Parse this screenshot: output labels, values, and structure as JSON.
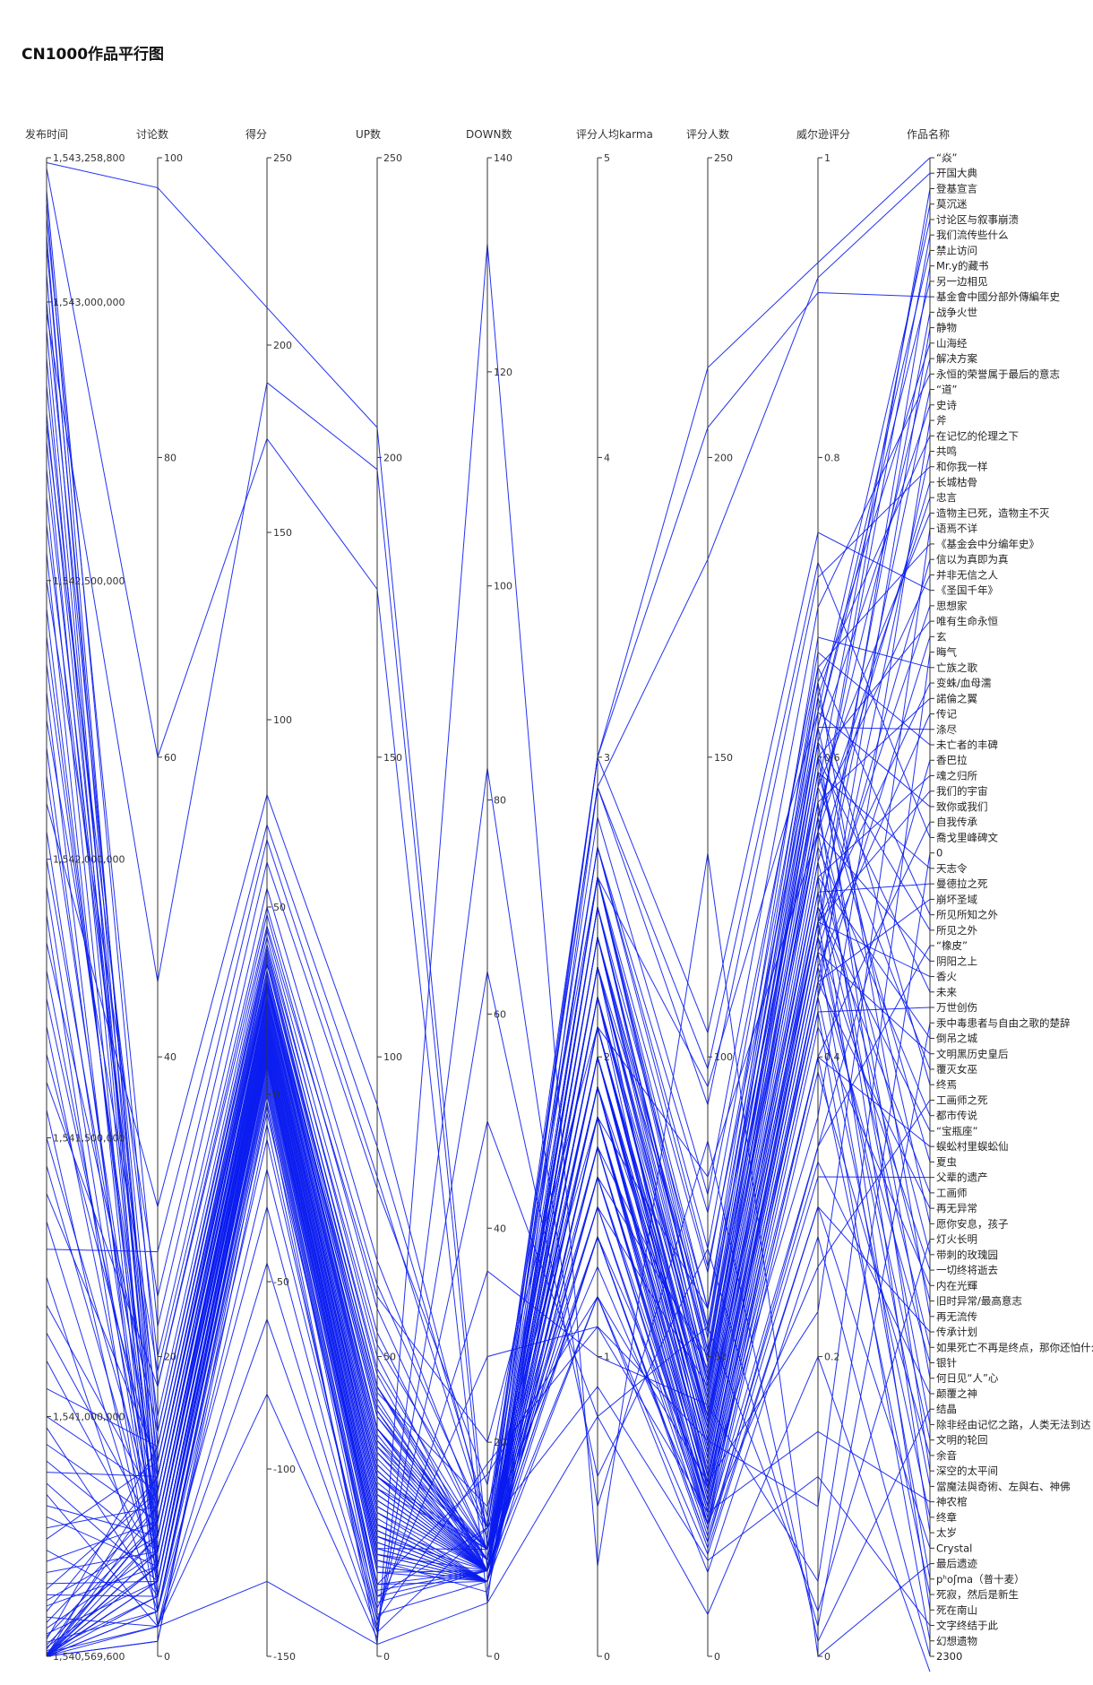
{
  "title": "CN1000作品平行图",
  "chart_data": {
    "type": "parallel-coordinates",
    "title": "CN1000作品平行图",
    "line_color": "#0a1cf0",
    "axes": [
      {
        "key": "time",
        "label": "发布时间",
        "min": 1540569600,
        "max": 1543258800,
        "ticks": [
          1540569600,
          1541000000,
          1541500000,
          1542000000,
          1542500000,
          1543000000,
          1543258800
        ],
        "tick_labels": [
          "1,540,569,600",
          "1,541,000,000",
          "1,541,500,000",
          "1,542,000,000",
          "1,542,500,000",
          "1,543,000,000",
          "1,543,258,800"
        ]
      },
      {
        "key": "comments",
        "label": "讨论数",
        "min": 0,
        "max": 100,
        "ticks": [
          0,
          20,
          40,
          60,
          80,
          100
        ],
        "tick_labels": [
          "0",
          "20",
          "40",
          "60",
          "80",
          "100"
        ]
      },
      {
        "key": "score",
        "label": "得分",
        "min": -150,
        "max": 250,
        "ticks": [
          -150,
          -100,
          -50,
          0,
          50,
          100,
          150,
          200,
          250
        ],
        "tick_labels": [
          "-150",
          "-100",
          "-50",
          "0",
          "50",
          "100",
          "150",
          "200",
          "250"
        ]
      },
      {
        "key": "up",
        "label": "UP数",
        "min": 0,
        "max": 250,
        "ticks": [
          0,
          50,
          100,
          150,
          200,
          250
        ],
        "tick_labels": [
          "0",
          "50",
          "100",
          "150",
          "200",
          "250"
        ]
      },
      {
        "key": "down",
        "label": "DOWN数",
        "min": 0,
        "max": 140,
        "ticks": [
          0,
          20,
          40,
          60,
          80,
          100,
          120,
          140
        ],
        "tick_labels": [
          "0",
          "20",
          "40",
          "60",
          "80",
          "100",
          "120",
          "140"
        ]
      },
      {
        "key": "karma",
        "label": "评分人均karma",
        "min": 0,
        "max": 5,
        "ticks": [
          0,
          1,
          2,
          3,
          4,
          5
        ],
        "tick_labels": [
          "0",
          "1",
          "2",
          "3",
          "4",
          "5"
        ]
      },
      {
        "key": "raters",
        "label": "评分人数",
        "min": 0,
        "max": 250,
        "ticks": [
          0,
          50,
          100,
          150,
          200,
          250
        ],
        "tick_labels": [
          "0",
          "50",
          "100",
          "150",
          "200",
          "250"
        ]
      },
      {
        "key": "wilson",
        "label": "威尔逊评分",
        "min": 0,
        "max": 1,
        "ticks": [
          0,
          0.2,
          0.4,
          0.6,
          0.8,
          1
        ],
        "tick_labels": [
          "0",
          "0.2",
          "0.4",
          "0.6",
          "0.8",
          "1"
        ]
      },
      {
        "key": "name",
        "label": "作品名称",
        "categorical": true
      }
    ],
    "categories": [
      "“焱”",
      "开国大典",
      "登基宣言",
      "莫沉迷",
      "讨论区与叙事崩溃",
      "我们流传些什么",
      "禁止访问",
      "Mr.y的藏书",
      "另一边相见",
      "基金會中國分部外傳編年史",
      "战争火世",
      "静物",
      "山海经",
      "解决方案",
      "永恒的荣誉属于最后的意志",
      "“道”",
      "史诗",
      "斧",
      " 在记忆的伦理之下",
      "共鸣",
      "和你我一样",
      "长城枯骨",
      "忠言",
      "造物主已死，造物主不灭",
      "语焉不详",
      "《基金会中分编年史》",
      "信以为真即为真",
      "并非无信之人",
      "《圣国千年》",
      "思想家",
      "唯有生命永恒",
      "玄",
      "晦气",
      "亡族之歌",
      "变蛛/血母濡",
      "諾倫之翼",
      "传记",
      "涤尽",
      "未亡者的丰碑",
      "香巴拉",
      "魂之归所",
      "我们的宇宙",
      "致你或我们",
      "自我传承",
      "喬戈里峰碑文",
      "0",
      "天志令",
      "曼德拉之死",
      "崩坏圣域",
      "所见所知之外",
      "所见之外",
      "“橡皮”",
      "阴阳之上",
      "香火",
      "未来",
      "万世创伤",
      "汞中毒患者与自由之歌的楚辞",
      "倒吊之城",
      "文明黑历史皇后",
      "覆灭女巫",
      "终焉",
      "工画师之死",
      "都市传说",
      "“宝瓶座”",
      "蜈蚣村里蜈蚣仙",
      "夏虫",
      "父辈的遗产",
      "工画师",
      "再无异常",
      "愿你安息，孩子",
      "灯火长明",
      "带刺的玫瑰园",
      "一切终将逝去",
      "内在光輝",
      "旧时异常/最高意志",
      "再无流传",
      "传承计划",
      "如果死亡不再是终点，那你还怕什么",
      "银针",
      "何日见“人”心",
      "颠覆之神",
      "结晶",
      "除非经由记忆之路，人类无法到达",
      "文明的轮回",
      "余音",
      "深空的太平间",
      "當魔法與奇術、左與右、神佛",
      "神农棺",
      "终章",
      "太岁",
      "Crystal",
      "最后遗迹",
      "pʰoʃma（普十麦）",
      "死寂，然后是新生",
      "死在南山",
      "文字终结于此",
      "幻想遗物",
      "2300"
    ],
    "records": [
      [
        1543250000,
        98,
        210,
        205,
        10,
        3.0,
        215,
        0.93,
        0
      ],
      [
        1543240000,
        60,
        175,
        178,
        5,
        2.9,
        183,
        0.92,
        1
      ],
      [
        1543200000,
        18,
        45,
        60,
        20,
        2.1,
        80,
        0.55,
        2
      ],
      [
        1543180000,
        10,
        30,
        44,
        14,
        1.8,
        58,
        0.58,
        3
      ],
      [
        1543150000,
        22,
        62,
        78,
        16,
        2.6,
        95,
        0.63,
        4
      ],
      [
        1543120000,
        8,
        25,
        35,
        10,
        1.5,
        45,
        0.55,
        5
      ],
      [
        1543100000,
        12,
        35,
        45,
        10,
        2.3,
        55,
        0.62,
        6
      ],
      [
        1543050000,
        5,
        15,
        22,
        7,
        2.0,
        30,
        0.48,
        7
      ],
      [
        1543000000,
        15,
        40,
        52,
        12,
        2.7,
        65,
        0.62,
        8
      ],
      [
        1542980000,
        45,
        190,
        198,
        8,
        3.0,
        205,
        0.91,
        9
      ],
      [
        1542950000,
        9,
        20,
        30,
        10,
        1.9,
        40,
        0.5,
        10
      ],
      [
        1542900000,
        6,
        12,
        20,
        8,
        2.2,
        28,
        0.44,
        11
      ],
      [
        1542850000,
        14,
        38,
        48,
        10,
        2.5,
        58,
        0.64,
        12
      ],
      [
        1542800000,
        11,
        28,
        38,
        10,
        1.7,
        48,
        0.56,
        13
      ],
      [
        1542780000,
        20,
        55,
        66,
        11,
        2.8,
        77,
        0.7,
        14
      ],
      [
        1542750000,
        7,
        18,
        26,
        8,
        2.1,
        34,
        0.49,
        15
      ],
      [
        1542700000,
        13,
        33,
        42,
        9,
        2.4,
        51,
        0.61,
        16
      ],
      [
        1542650000,
        5,
        8,
        18,
        10,
        1.4,
        28,
        0.36,
        17
      ],
      [
        1542600000,
        16,
        44,
        54,
        10,
        2.6,
        64,
        0.65,
        18
      ],
      [
        1542550000,
        4,
        10,
        16,
        6,
        1.8,
        22,
        0.45,
        19
      ],
      [
        1542500000,
        24,
        68,
        80,
        12,
        2.9,
        92,
        0.72,
        20
      ],
      [
        1542450000,
        8,
        22,
        30,
        8,
        2.0,
        38,
        0.53,
        21
      ],
      [
        1542400000,
        10,
        26,
        36,
        10,
        2.2,
        46,
        0.55,
        22
      ],
      [
        1542350000,
        12,
        30,
        40,
        10,
        1.6,
        50,
        0.58,
        23
      ],
      [
        1542300000,
        3,
        -5,
        12,
        17,
        1.2,
        29,
        0.23,
        24
      ],
      [
        1542250000,
        19,
        50,
        62,
        12,
        2.7,
        74,
        0.66,
        25
      ],
      [
        1542200000,
        6,
        14,
        22,
        8,
        2.3,
        30,
        0.47,
        26
      ],
      [
        1542150000,
        9,
        24,
        32,
        8,
        2.1,
        40,
        0.56,
        27
      ],
      [
        1542100000,
        30,
        80,
        92,
        12,
        3.0,
        104,
        0.75,
        28
      ],
      [
        1542050000,
        7,
        16,
        24,
        8,
        1.9,
        32,
        0.48,
        29
      ],
      [
        1542000000,
        11,
        29,
        38,
        9,
        2.4,
        47,
        0.6,
        30
      ],
      [
        1541950000,
        5,
        11,
        18,
        7,
        1.7,
        25,
        0.44,
        31
      ],
      [
        1541900000,
        2,
        -20,
        8,
        28,
        1.1,
        36,
        0.1,
        32
      ],
      [
        1541850000,
        15,
        42,
        50,
        8,
        2.6,
        58,
        0.68,
        33
      ],
      [
        1541800000,
        8,
        18,
        28,
        10,
        2.0,
        38,
        0.49,
        34
      ],
      [
        1541750000,
        10,
        25,
        34,
        9,
        2.2,
        43,
        0.57,
        35
      ],
      [
        1541700000,
        6,
        13,
        20,
        7,
        1.8,
        27,
        0.46,
        36
      ],
      [
        1541650000,
        12,
        32,
        41,
        9,
        2.5,
        50,
        0.62,
        37
      ],
      [
        1541600000,
        18,
        48,
        58,
        10,
        2.7,
        68,
        0.67,
        38
      ],
      [
        1541550000,
        4,
        6,
        14,
        8,
        1.5,
        22,
        0.34,
        39
      ],
      [
        1541500000,
        9,
        21,
        30,
        9,
        2.1,
        39,
        0.52,
        40
      ],
      [
        1541450000,
        7,
        17,
        25,
        8,
        2.0,
        33,
        0.49,
        41
      ],
      [
        1541400000,
        13,
        36,
        45,
        9,
        2.4,
        54,
        0.63,
        42
      ],
      [
        1541350000,
        5,
        9,
        17,
        8,
        1.6,
        25,
        0.4,
        43
      ],
      [
        1541300000,
        27,
        72,
        85,
        13,
        2.9,
        98,
        0.73,
        44
      ],
      [
        1541250000,
        3,
        -30,
        6,
        36,
        1.0,
        42,
        0.05,
        45
      ],
      [
        1541200000,
        10,
        27,
        35,
        8,
        2.3,
        43,
        0.59,
        46
      ],
      [
        1541150000,
        8,
        19,
        27,
        8,
        2.0,
        35,
        0.51,
        47
      ],
      [
        1541100000,
        6,
        12,
        19,
        7,
        1.9,
        26,
        0.45,
        48
      ],
      [
        1541050000,
        14,
        39,
        47,
        8,
        2.6,
        55,
        0.66,
        49
      ],
      [
        1541000000,
        11,
        30,
        38,
        8,
        2.3,
        46,
        0.61,
        50
      ],
      [
        1540980000,
        4,
        5,
        12,
        7,
        1.4,
        19,
        0.34,
        51
      ],
      [
        1540950000,
        9,
        23,
        31,
        8,
        2.2,
        39,
        0.55,
        52
      ],
      [
        1540920000,
        7,
        15,
        22,
        7,
        1.8,
        29,
        0.49,
        53
      ],
      [
        1540900000,
        12,
        31,
        40,
        9,
        2.5,
        49,
        0.6,
        54
      ],
      [
        1540880000,
        5,
        10,
        17,
        7,
        1.7,
        24,
        0.43,
        55
      ],
      [
        1540860000,
        2,
        -60,
        4,
        64,
        0.6,
        68,
        0.02,
        56
      ],
      [
        1540840000,
        8,
        20,
        28,
        8,
        2.1,
        36,
        0.52,
        57
      ],
      [
        1540820000,
        6,
        14,
        21,
        7,
        1.9,
        28,
        0.47,
        58
      ],
      [
        1540800000,
        10,
        26,
        34,
        8,
        2.4,
        42,
        0.58,
        59
      ],
      [
        1540780000,
        13,
        35,
        43,
        8,
        2.6,
        51,
        0.64,
        60
      ],
      [
        1540760000,
        3,
        -2,
        10,
        12,
        1.3,
        22,
        0.26,
        61
      ],
      [
        1540740000,
        9,
        22,
        30,
        8,
        2.2,
        38,
        0.54,
        62
      ],
      [
        1540720000,
        7,
        17,
        24,
        7,
        2.0,
        31,
        0.5,
        63
      ],
      [
        1540700000,
        5,
        8,
        15,
        7,
        1.6,
        22,
        0.4,
        64
      ],
      [
        1540690000,
        11,
        28,
        36,
        8,
        2.3,
        44,
        0.59,
        65
      ],
      [
        1540680000,
        4,
        3,
        11,
        8,
        1.4,
        19,
        0.32,
        66
      ],
      [
        1540670000,
        8,
        18,
        26,
        8,
        2.1,
        34,
        0.5,
        67
      ],
      [
        1540660000,
        6,
        12,
        19,
        7,
        1.9,
        26,
        0.45,
        68
      ],
      [
        1540650000,
        12,
        33,
        41,
        8,
        2.5,
        49,
        0.62,
        69
      ],
      [
        1540640000,
        2,
        -45,
        5,
        50,
        0.8,
        55,
        0.03,
        70
      ],
      [
        1540630000,
        10,
        24,
        32,
        8,
        2.2,
        40,
        0.56,
        71
      ],
      [
        1540620000,
        7,
        16,
        23,
        7,
        1.9,
        30,
        0.48,
        72
      ],
      [
        1540610000,
        5,
        9,
        16,
        7,
        1.7,
        23,
        0.42,
        73
      ],
      [
        1540605000,
        9,
        21,
        29,
        8,
        2.1,
        37,
        0.53,
        74
      ],
      [
        1540600000,
        14,
        37,
        45,
        8,
        2.6,
        53,
        0.65,
        75
      ],
      [
        1540595000,
        3,
        1,
        9,
        8,
        1.2,
        17,
        0.3,
        76
      ],
      [
        1540590000,
        8,
        19,
        27,
        8,
        2.0,
        35,
        0.51,
        77
      ],
      [
        1540586000,
        6,
        13,
        20,
        7,
        1.8,
        27,
        0.46,
        78
      ],
      [
        1540582000,
        11,
        29,
        37,
        8,
        2.4,
        45,
        0.6,
        79
      ],
      [
        1540579000,
        4,
        4,
        12,
        8,
        1.5,
        20,
        0.33,
        80
      ],
      [
        1540576000,
        2,
        -80,
        3,
        83,
        0.5,
        86,
        0.01,
        81
      ],
      [
        1540574000,
        9,
        23,
        31,
        8,
        2.2,
        39,
        0.55,
        82
      ],
      [
        1540572000,
        7,
        15,
        22,
        7,
        1.9,
        29,
        0.48,
        83
      ],
      [
        1540571000,
        5,
        7,
        14,
        7,
        1.6,
        21,
        0.39,
        84
      ],
      [
        1540570500,
        12,
        30,
        38,
        8,
        2.5,
        46,
        0.61,
        85
      ],
      [
        1540570200,
        8,
        17,
        25,
        8,
        2.0,
        33,
        0.49,
        86
      ],
      [
        1540570000,
        3,
        -12,
        6,
        18,
        1.1,
        24,
        0.15,
        87
      ],
      [
        1540569900,
        6,
        11,
        18,
        7,
        1.8,
        25,
        0.44,
        88
      ],
      [
        1540569800,
        10,
        25,
        33,
        8,
        2.3,
        41,
        0.57,
        89
      ],
      [
        1540569750,
        4,
        2,
        10,
        8,
        1.4,
        18,
        0.3,
        90
      ],
      [
        1540569700,
        2,
        -130,
        2,
        132,
        0.3,
        134,
        0.0,
        91
      ],
      [
        1540569680,
        7,
        14,
        21,
        7,
        1.9,
        28,
        0.47,
        92
      ],
      [
        1540569660,
        5,
        8,
        15,
        7,
        1.7,
        22,
        0.4,
        93
      ],
      [
        1540569640,
        9,
        20,
        28,
        8,
        2.1,
        36,
        0.52,
        94
      ],
      [
        1540569630,
        1,
        -8,
        4,
        12,
        0.9,
        16,
        0.12,
        95
      ],
      [
        1540569620,
        6,
        10,
        17,
        7,
        1.8,
        24,
        0.43,
        96
      ],
      [
        1540569610,
        3,
        0,
        7,
        7,
        1.2,
        14,
        0.28,
        97
      ],
      [
        1540569600,
        1,
        -3,
        2,
        5,
        0.8,
        7,
        0.2,
        98
      ]
    ]
  }
}
